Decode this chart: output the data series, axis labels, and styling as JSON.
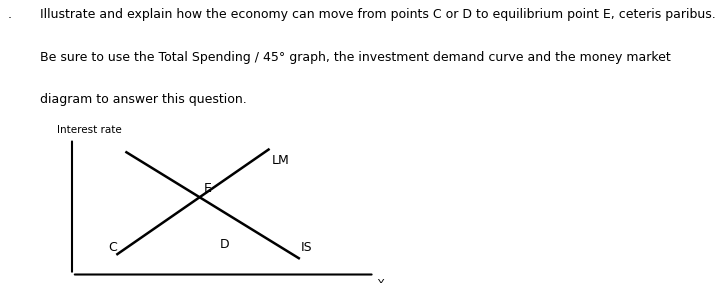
{
  "title_line1": "Illustrate and explain how the economy can move from points C or D to equilibrium point E, ceteris paribus.",
  "title_line2": "Be sure to use the Total Spending / 45° graph, the investment demand curve and the money market",
  "title_line3": "diagram to answer this question.",
  "question_number": ".",
  "ylabel": "Interest rate",
  "xlabel": "Y",
  "lm_label": "LM",
  "is_label": "IS",
  "point_e": "E",
  "point_c": "C",
  "point_d": "D",
  "background_color": "#ffffff",
  "line_color": "#000000",
  "text_color": "#000000",
  "font_size_title": 9.0,
  "font_size_axis_label": 7.5,
  "font_size_curve_label": 9.0,
  "font_size_point": 9.0
}
